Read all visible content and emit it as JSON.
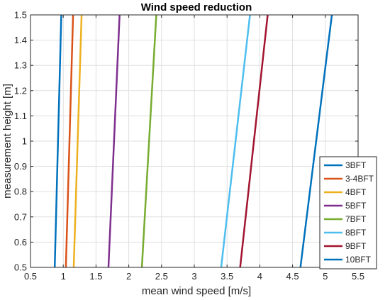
{
  "chart_data": {
    "type": "line",
    "title": "Wind speed reduction",
    "xlabel": "mean wind speed [m/s]",
    "ylabel": "measurement height [m]",
    "xlim": [
      0.5,
      5.5
    ],
    "ylim": [
      0.5,
      1.5
    ],
    "x_ticks": [
      "0.5",
      "1",
      "1.5",
      "2",
      "2.5",
      "3",
      "3.5",
      "4",
      "4.5",
      "5",
      "5.5"
    ],
    "y_ticks": [
      "0.5",
      "0.6",
      "0.7",
      "0.8",
      "0.9",
      "1",
      "1.1",
      "1.2",
      "1.3",
      "1.4",
      "1.5"
    ],
    "grid": true,
    "legend_position": "lower-right",
    "series": [
      {
        "name": "3BFT",
        "color": "#0072BD",
        "x": [
          0.87,
          0.97
        ],
        "y": [
          0.5,
          1.5
        ]
      },
      {
        "name": "3-4BFT",
        "color": "#D95319",
        "x": [
          1.04,
          1.15
        ],
        "y": [
          0.5,
          1.5
        ]
      },
      {
        "name": "4BFT",
        "color": "#EDB120",
        "x": [
          1.16,
          1.28
        ],
        "y": [
          0.5,
          1.5
        ]
      },
      {
        "name": "5BFT",
        "color": "#7E2F8E",
        "x": [
          1.69,
          1.86
        ],
        "y": [
          0.5,
          1.5
        ]
      },
      {
        "name": "7BFT",
        "color": "#77AC30",
        "x": [
          2.2,
          2.42
        ],
        "y": [
          0.5,
          1.5
        ]
      },
      {
        "name": "8BFT",
        "color": "#4DBEEE",
        "x": [
          3.41,
          3.85
        ],
        "y": [
          0.5,
          1.5
        ]
      },
      {
        "name": "9BFT",
        "color": "#A2142F",
        "x": [
          3.7,
          4.12
        ],
        "y": [
          0.5,
          1.5
        ]
      },
      {
        "name": "10BFT",
        "color": "#0072BD",
        "x": [
          4.62,
          5.1
        ],
        "y": [
          0.5,
          1.5
        ]
      }
    ]
  }
}
